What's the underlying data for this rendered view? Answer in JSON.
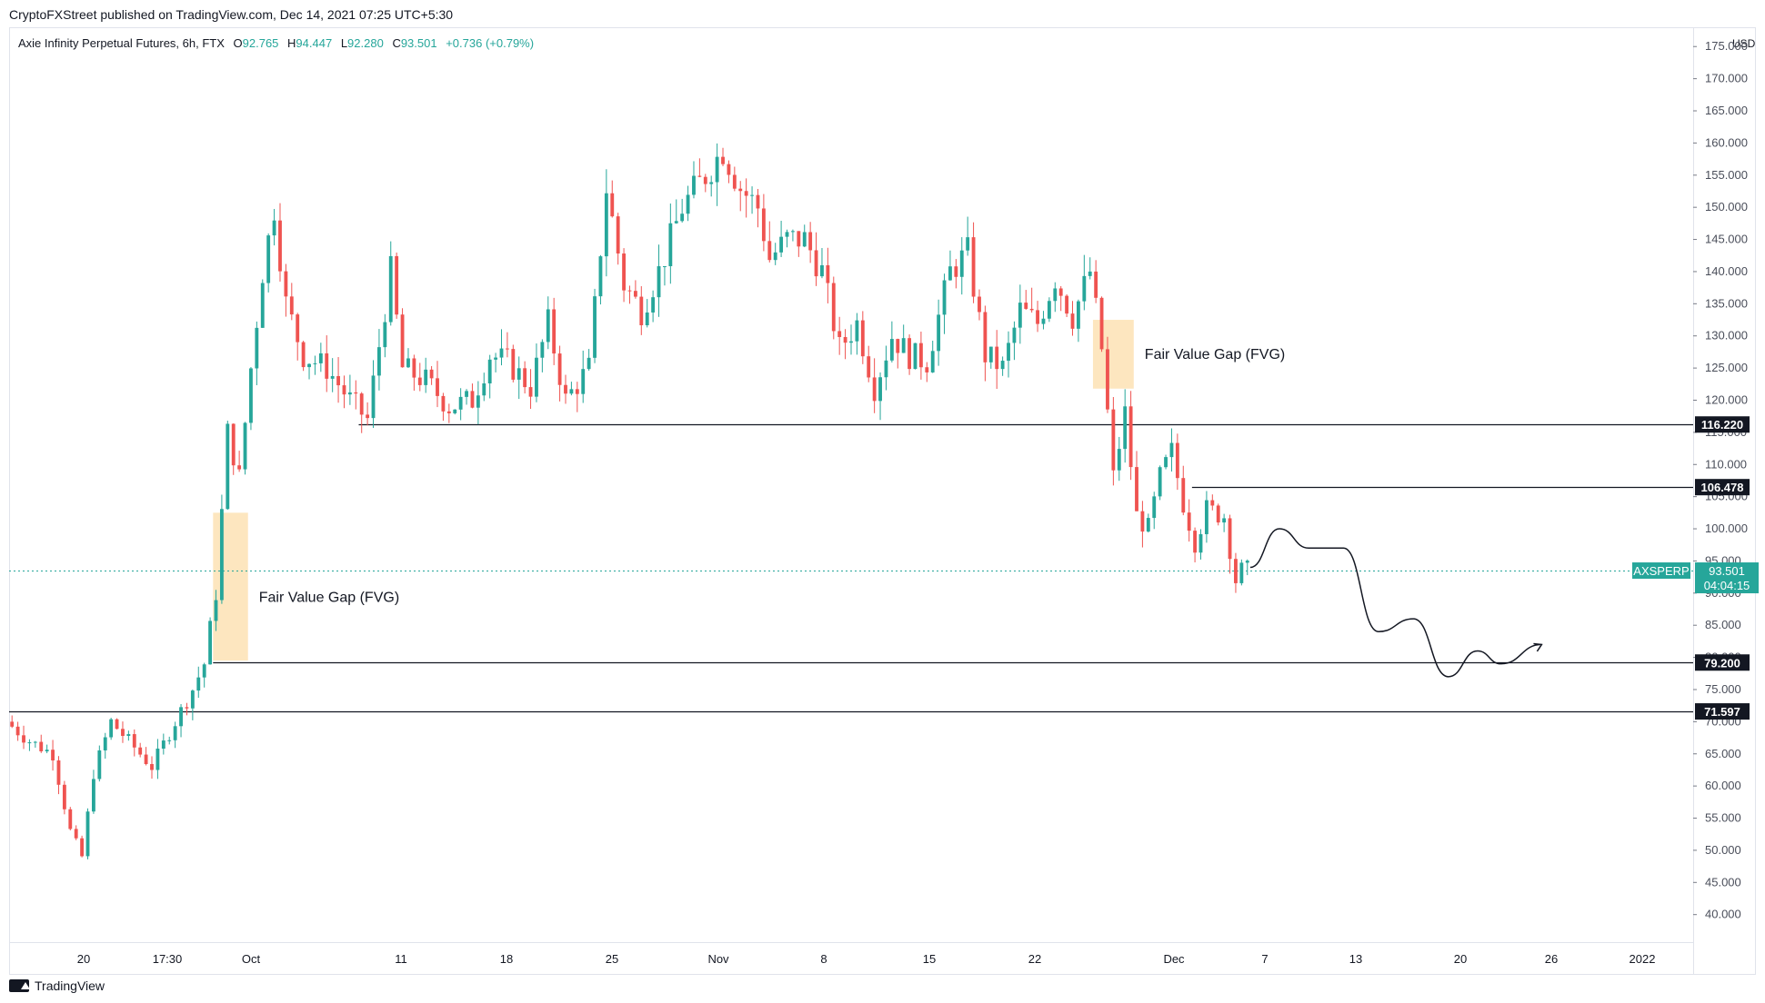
{
  "header": {
    "published": "CryptoFXStreet published on TradingView.com, Dec 14, 2021 07:25 UTC+5:30"
  },
  "legend": {
    "symbol": "Axie Infinity Perpetual Futures, 6h, FTX",
    "o_label": "O",
    "o": "92.765",
    "h_label": "H",
    "h": "94.447",
    "l_label": "L",
    "l": "92.280",
    "c_label": "C",
    "c": "93.501",
    "change": "+0.736 (+0.79%)"
  },
  "footer": {
    "brand": "TradingView"
  },
  "colors": {
    "up": "#26a69a",
    "down": "#ef5350",
    "fvg": "#fde2b4",
    "line": "#131722",
    "price_line": "#26a69a"
  },
  "chart_data": {
    "type": "candlestick",
    "currency": "USD",
    "timeframe": "6h",
    "ylim": [
      36,
      178
    ],
    "y_ticks": [
      "40.000",
      "45.000",
      "50.000",
      "55.000",
      "60.000",
      "65.000",
      "70.000",
      "75.000",
      "80.000",
      "85.000",
      "90.000",
      "95.000",
      "100.000",
      "105.000",
      "110.000",
      "115.000",
      "120.000",
      "125.000",
      "130.000",
      "135.000",
      "140.000",
      "145.000",
      "150.000",
      "155.000",
      "160.000",
      "165.000",
      "170.000",
      "175.000"
    ],
    "x_labels": [
      "20",
      "17:30",
      "Oct",
      "11",
      "18",
      "25",
      "Nov",
      "8",
      "15",
      "22",
      "Dec",
      "7",
      "13",
      "20",
      "26",
      "2022"
    ],
    "price_path": [
      {
        "t": 0,
        "p": 70
      },
      {
        "t": 4,
        "p": 67
      },
      {
        "t": 8,
        "p": 65
      },
      {
        "t": 11,
        "p": 53
      },
      {
        "t": 13,
        "p": 49
      },
      {
        "t": 15,
        "p": 62
      },
      {
        "t": 18,
        "p": 70
      },
      {
        "t": 22,
        "p": 66
      },
      {
        "t": 25,
        "p": 63
      },
      {
        "t": 29,
        "p": 70
      },
      {
        "t": 32,
        "p": 75
      },
      {
        "t": 34,
        "p": 79
      },
      {
        "t": 36,
        "p": 90
      },
      {
        "t": 38,
        "p": 115
      },
      {
        "t": 40,
        "p": 108
      },
      {
        "t": 42,
        "p": 125
      },
      {
        "t": 44,
        "p": 140
      },
      {
        "t": 46,
        "p": 150
      },
      {
        "t": 48,
        "p": 135
      },
      {
        "t": 51,
        "p": 127
      },
      {
        "t": 55,
        "p": 125
      },
      {
        "t": 59,
        "p": 120
      },
      {
        "t": 62,
        "p": 117
      },
      {
        "t": 66,
        "p": 140
      },
      {
        "t": 68,
        "p": 125
      },
      {
        "t": 72,
        "p": 123
      },
      {
        "t": 76,
        "p": 119
      },
      {
        "t": 80,
        "p": 120
      },
      {
        "t": 83,
        "p": 127
      },
      {
        "t": 86,
        "p": 126
      },
      {
        "t": 90,
        "p": 122
      },
      {
        "t": 93,
        "p": 132
      },
      {
        "t": 96,
        "p": 120
      },
      {
        "t": 100,
        "p": 125
      },
      {
        "t": 103,
        "p": 153
      },
      {
        "t": 106,
        "p": 138
      },
      {
        "t": 109,
        "p": 134
      },
      {
        "t": 112,
        "p": 140
      },
      {
        "t": 116,
        "p": 150
      },
      {
        "t": 120,
        "p": 155
      },
      {
        "t": 123,
        "p": 159
      },
      {
        "t": 126,
        "p": 153
      },
      {
        "t": 129,
        "p": 150
      },
      {
        "t": 131,
        "p": 142
      },
      {
        "t": 134,
        "p": 145
      },
      {
        "t": 137,
        "p": 145
      },
      {
        "t": 140,
        "p": 140
      },
      {
        "t": 143,
        "p": 128
      },
      {
        "t": 146,
        "p": 132
      },
      {
        "t": 149,
        "p": 122
      },
      {
        "t": 152,
        "p": 130
      },
      {
        "t": 155,
        "p": 127
      },
      {
        "t": 158,
        "p": 126
      },
      {
        "t": 162,
        "p": 140
      },
      {
        "t": 165,
        "p": 143
      },
      {
        "t": 168,
        "p": 127
      },
      {
        "t": 171,
        "p": 125
      },
      {
        "t": 174,
        "p": 134
      },
      {
        "t": 177,
        "p": 132
      },
      {
        "t": 180,
        "p": 139
      },
      {
        "t": 183,
        "p": 133
      },
      {
        "t": 186,
        "p": 140
      },
      {
        "t": 188,
        "p": 128
      },
      {
        "t": 190,
        "p": 108
      },
      {
        "t": 192,
        "p": 118
      },
      {
        "t": 194,
        "p": 102
      },
      {
        "t": 196,
        "p": 100
      },
      {
        "t": 198,
        "p": 108
      },
      {
        "t": 200,
        "p": 112
      },
      {
        "t": 202,
        "p": 104
      },
      {
        "t": 204,
        "p": 98
      },
      {
        "t": 206,
        "p": 103
      },
      {
        "t": 209,
        "p": 102
      },
      {
        "t": 211,
        "p": 92
      },
      {
        "t": 212,
        "p": 93.5
      }
    ],
    "candle_count": 213,
    "projection": [
      {
        "t": 213,
        "p": 94
      },
      {
        "t": 218,
        "p": 100
      },
      {
        "t": 223,
        "p": 97
      },
      {
        "t": 229,
        "p": 97
      },
      {
        "t": 235,
        "p": 84
      },
      {
        "t": 241,
        "p": 86
      },
      {
        "t": 247,
        "p": 77
      },
      {
        "t": 252,
        "p": 81
      },
      {
        "t": 256,
        "p": 79
      },
      {
        "t": 263,
        "p": 82
      }
    ],
    "fvg_zones": [
      {
        "label": "Fair Value Gap (FVG)",
        "t_start": 35,
        "t_end": 41,
        "high": 102.5,
        "low": 79.5
      },
      {
        "label": "Fair Value Gap (FVG)",
        "t_start": 186,
        "t_end": 193,
        "high": 132.5,
        "low": 121.8
      }
    ],
    "levels": [
      {
        "label": "116.220",
        "value": 116.22,
        "t_start": 60
      },
      {
        "label": "106.478",
        "value": 106.478,
        "t_start": 203
      },
      {
        "label": "79.200",
        "value": 79.2,
        "t_start": 35
      },
      {
        "label": "71.597",
        "value": 71.597,
        "t_start": 0
      }
    ],
    "last_price": {
      "symbol": "AXSPERP",
      "value": 93.501,
      "label": "93.501",
      "countdown": "04:04:15"
    }
  }
}
